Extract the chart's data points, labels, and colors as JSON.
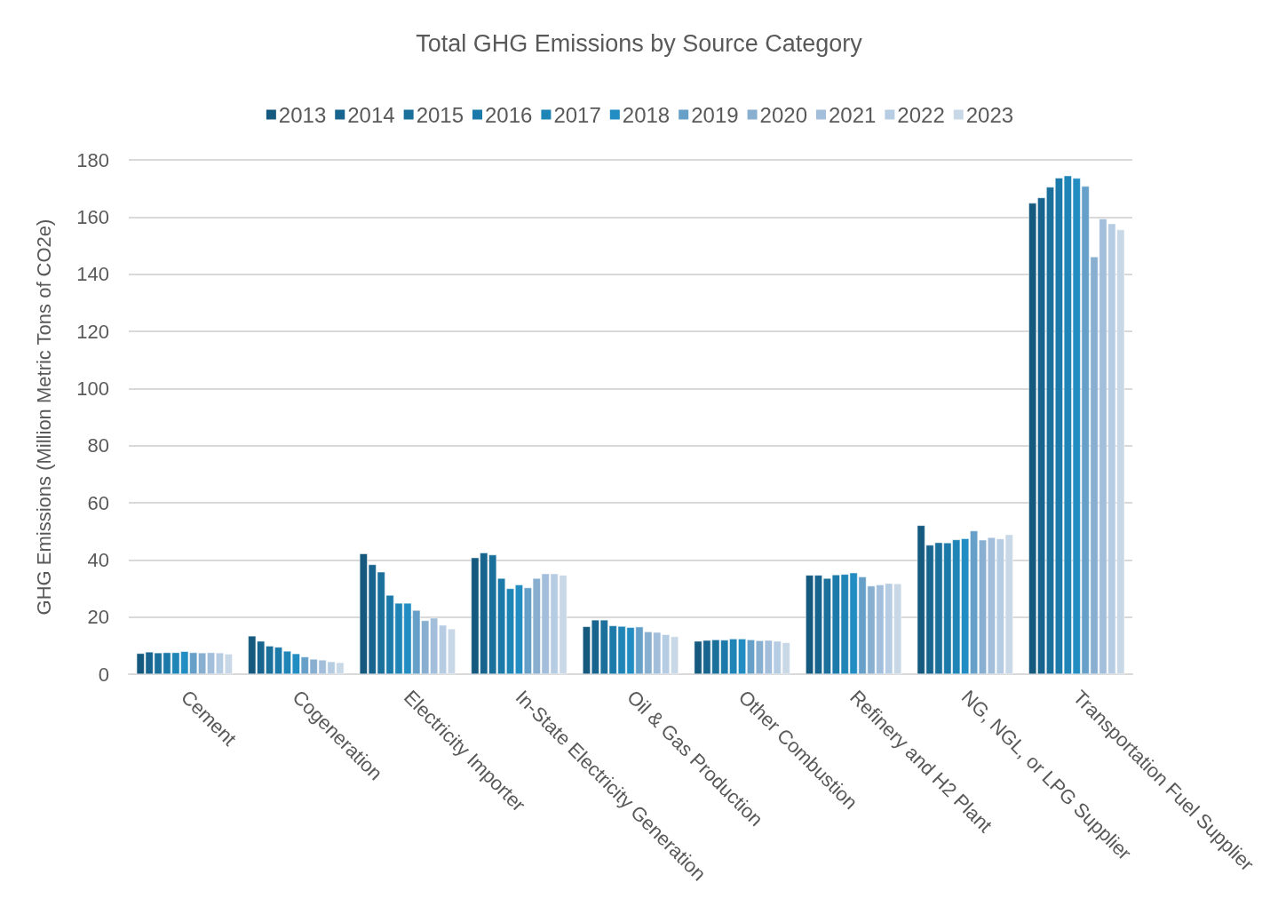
{
  "chart_data": {
    "type": "bar",
    "title": "Total GHG Emissions by Source Category",
    "ylabel": "GHG Emissions (Million Metric Tons of CO2e)",
    "categories": [
      "Cement",
      "Cogeneration",
      "Electricity Importer",
      "In-State Electricity Generation",
      "Oil & Gas Production",
      "Other Combustion",
      "Refinery and H2 Plant",
      "NG, NGL, or LPG Supplier",
      "Transportation Fuel Supplier"
    ],
    "series": [
      {
        "name": "2013",
        "color": "#155a7e",
        "values": [
          7.3,
          13.4,
          42.2,
          40.8,
          16.7,
          11.6,
          34.7,
          52.1,
          164.9
        ]
      },
      {
        "name": "2014",
        "color": "#17648e",
        "values": [
          7.8,
          11.6,
          38.4,
          42.5,
          19.0,
          11.9,
          34.7,
          45.2,
          166.8
        ]
      },
      {
        "name": "2015",
        "color": "#1a6f9b",
        "values": [
          7.5,
          9.9,
          35.8,
          41.8,
          19.0,
          12.1,
          33.6,
          46.1,
          170.5
        ]
      },
      {
        "name": "2016",
        "color": "#1c7aaa",
        "values": [
          7.6,
          9.5,
          27.7,
          33.6,
          17.0,
          12.0,
          34.8,
          46.0,
          173.7
        ]
      },
      {
        "name": "2017",
        "color": "#1f84b6",
        "values": [
          7.6,
          8.1,
          24.9,
          30.0,
          16.8,
          12.4,
          35.0,
          47.1,
          174.5
        ]
      },
      {
        "name": "2018",
        "color": "#228dc2",
        "values": [
          8.0,
          7.2,
          24.9,
          31.3,
          16.4,
          12.4,
          35.5,
          47.5,
          173.6
        ]
      },
      {
        "name": "2019",
        "color": "#66a0c9",
        "values": [
          7.6,
          6.1,
          22.4,
          30.3,
          16.6,
          12.1,
          34.1,
          50.2,
          170.8
        ]
      },
      {
        "name": "2020",
        "color": "#88aed0",
        "values": [
          7.5,
          5.3,
          18.8,
          33.6,
          14.9,
          11.8,
          30.9,
          47.0,
          146.1
        ]
      },
      {
        "name": "2021",
        "color": "#a2bedb",
        "values": [
          7.6,
          5.0,
          19.7,
          35.2,
          14.7,
          11.9,
          31.3,
          47.9,
          159.4
        ]
      },
      {
        "name": "2022",
        "color": "#b6cce2",
        "values": [
          7.5,
          4.4,
          17.2,
          35.2,
          13.9,
          11.6,
          31.8,
          47.4,
          157.7
        ]
      },
      {
        "name": "2023",
        "color": "#c9d8e7",
        "values": [
          7.1,
          4.1,
          15.9,
          34.7,
          13.2,
          11.1,
          31.7,
          48.9,
          155.6
        ]
      }
    ],
    "ylim": [
      0,
      180
    ],
    "yticks": [
      0,
      20,
      40,
      60,
      80,
      100,
      120,
      140,
      160,
      180
    ],
    "grid": "y",
    "legend": "top"
  }
}
